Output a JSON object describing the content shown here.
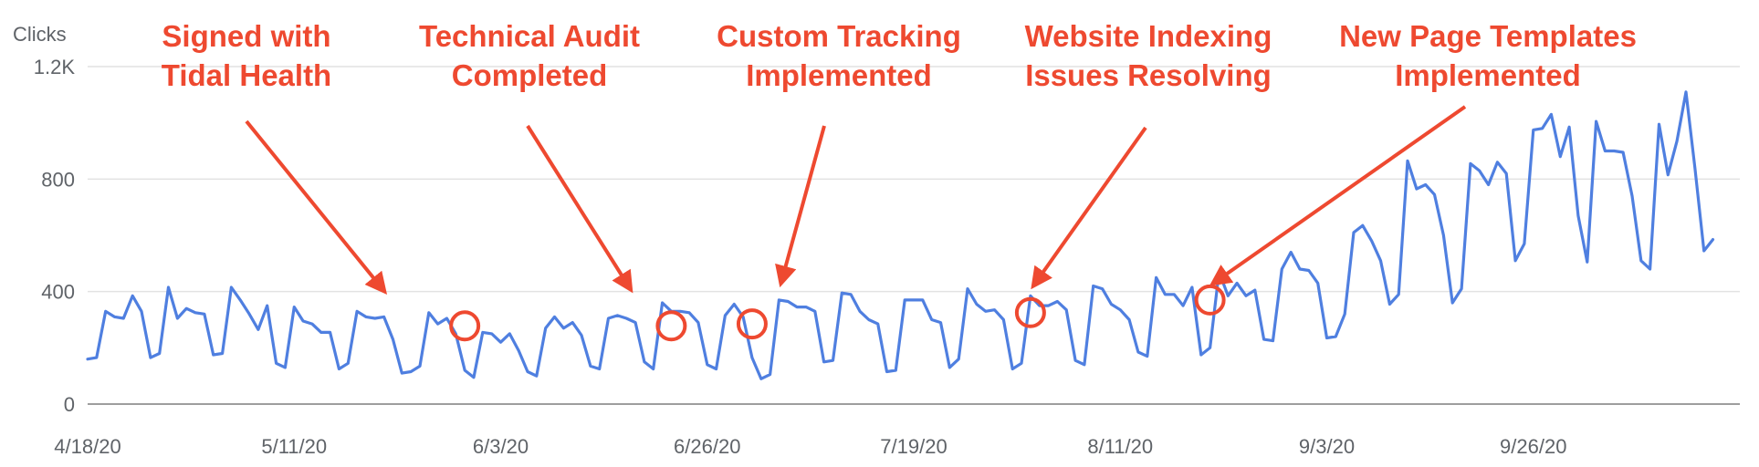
{
  "chart_data": {
    "type": "line",
    "ylabel": "Clicks",
    "ylim": [
      0,
      1200
    ],
    "yticks": [
      {
        "value": 0,
        "label": "0"
      },
      {
        "value": 400,
        "label": "400"
      },
      {
        "value": 800,
        "label": "800"
      },
      {
        "value": 1200,
        "label": "1.2K"
      }
    ],
    "xlim": [
      "2020-04-18",
      "2020-10-19"
    ],
    "xticks": [
      {
        "date": "2020-04-18",
        "label": "4/18/20"
      },
      {
        "date": "2020-05-11",
        "label": "5/11/20"
      },
      {
        "date": "2020-06-03",
        "label": "6/3/20"
      },
      {
        "date": "2020-06-26",
        "label": "6/26/20"
      },
      {
        "date": "2020-07-19",
        "label": "7/19/20"
      },
      {
        "date": "2020-08-11",
        "label": "8/11/20"
      },
      {
        "date": "2020-09-03",
        "label": "9/3/20"
      },
      {
        "date": "2020-09-26",
        "label": "9/26/20"
      }
    ],
    "grid": true,
    "color": "#4f7fe0",
    "annotation_color": "#ee4930",
    "start_date": "2020-04-18",
    "series": [
      {
        "values": [
          160,
          165,
          330,
          310,
          305,
          385,
          330,
          165,
          180,
          415,
          305,
          340,
          325,
          320,
          175,
          180,
          415,
          370,
          320,
          265,
          350,
          145,
          130,
          345,
          295,
          285,
          255,
          255,
          125,
          145,
          330,
          310,
          305,
          310,
          230,
          110,
          115,
          135,
          325,
          285,
          305,
          250,
          120,
          95,
          255,
          250,
          220,
          250,
          190,
          115,
          100,
          270,
          310,
          270,
          290,
          245,
          135,
          125,
          305,
          315,
          305,
          290,
          150,
          125,
          360,
          330,
          330,
          325,
          290,
          140,
          125,
          315,
          355,
          310,
          165,
          90,
          105,
          370,
          365,
          345,
          345,
          330,
          150,
          155,
          395,
          390,
          330,
          300,
          285,
          115,
          120,
          370,
          370,
          370,
          300,
          290,
          130,
          160,
          410,
          355,
          330,
          335,
          300,
          125,
          145,
          385,
          350,
          350,
          365,
          335,
          155,
          140,
          420,
          410,
          355,
          335,
          300,
          185,
          170,
          450,
          390,
          390,
          350,
          415,
          175,
          200,
          470,
          385,
          430,
          385,
          405,
          230,
          225,
          480,
          540,
          480,
          475,
          430,
          235,
          240,
          320,
          610,
          635,
          580,
          510,
          355,
          390,
          865,
          765,
          780,
          745,
          600,
          360,
          410,
          855,
          830,
          780,
          860,
          820,
          510,
          570,
          975,
          980,
          1030,
          880,
          985,
          670,
          505,
          1005,
          900,
          900,
          895,
          740,
          510,
          480,
          995,
          815,
          935,
          1110,
          840,
          545,
          585
        ]
      }
    ],
    "annotations": [
      {
        "lines": [
          "Signed with",
          "Tidal Health"
        ],
        "date": "2020-05-30",
        "value": 278
      },
      {
        "lines": [
          "Technical Audit",
          "Completed"
        ],
        "date": "2020-06-22",
        "value": 278
      },
      {
        "lines": [
          "Custom Tracking",
          "Implemented"
        ],
        "date": "2020-07-01",
        "value": 285
      },
      {
        "lines": [
          "Website Indexing",
          "Issues Resolving"
        ],
        "date": "2020-08-01",
        "value": 325
      },
      {
        "lines": [
          "New Page Templates",
          "Implemented"
        ],
        "date": "2020-08-21",
        "value": 370
      }
    ]
  }
}
